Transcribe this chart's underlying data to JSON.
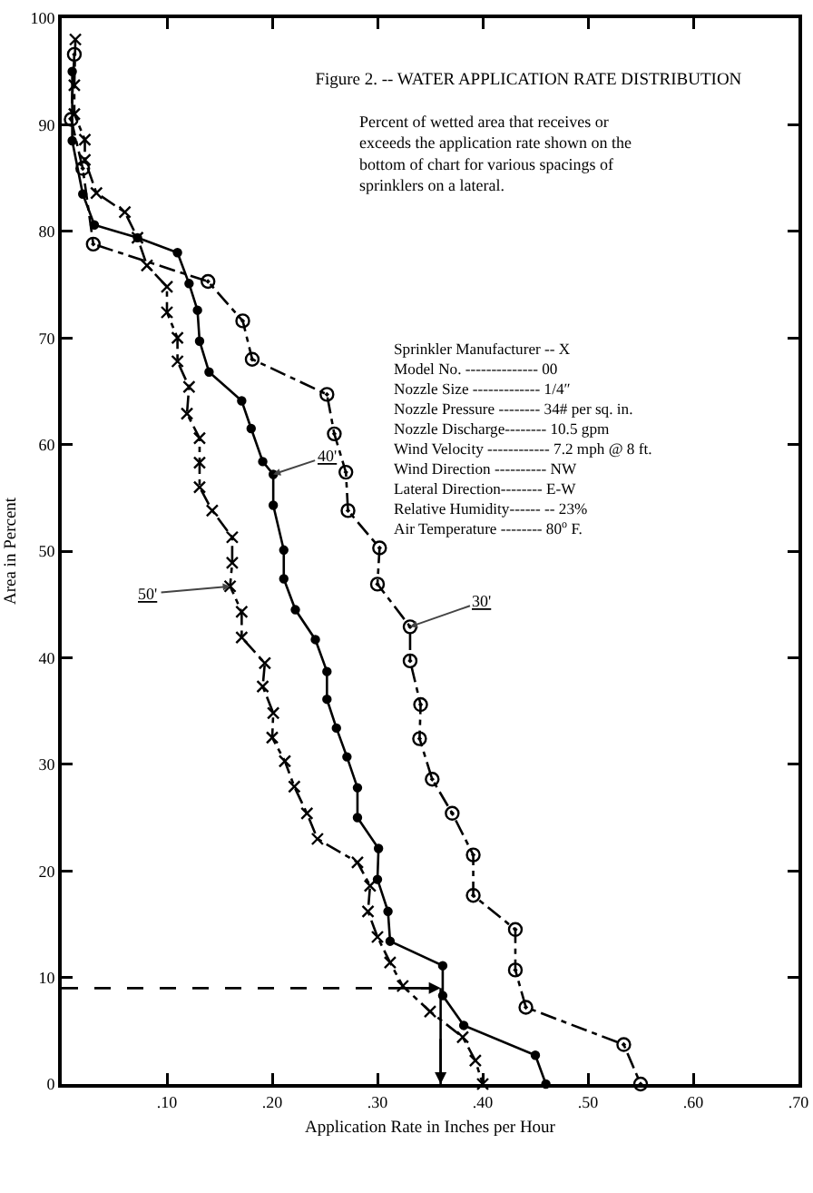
{
  "chart_data": {
    "type": "line",
    "title": "Figure 2. -- WATER APPLICATION RATE DISTRIBUTION",
    "subtitle": "Percent of wetted area that receives or exceeds the application rate shown on the bottom of chart for various spacings of sprinklers on a lateral.",
    "xlabel": "Application Rate in Inches per Hour",
    "ylabel": "Area in Percent",
    "series": [
      {
        "color": "#000000",
        "marker": "circle",
        "line_style": "dashed",
        "x": [
          0.012,
          0.009,
          0.02,
          0.03,
          0.139,
          0.172,
          0.181,
          0.252,
          0.259,
          0.27,
          0.272,
          0.302,
          0.3,
          0.331,
          0.331,
          0.341,
          0.34,
          0.352,
          0.371,
          0.391,
          0.391,
          0.431,
          0.431,
          0.441,
          0.534,
          0.55
        ],
        "values": [
          96.6,
          90.5,
          85.9,
          78.8,
          75.3,
          71.6,
          68,
          64.7,
          61,
          57.4,
          53.8,
          50.3,
          46.9,
          42.9,
          39.7,
          35.6,
          32.4,
          28.6,
          25.4,
          21.5,
          17.7,
          14.5,
          10.7,
          7.2,
          3.7,
          0
        ]
      },
      {
        "color": "#000000",
        "marker": "circle",
        "line_style": "solid",
        "x": [
          0.01,
          0.01,
          0.02,
          0.031,
          0.072,
          0.11,
          0.121,
          0.129,
          0.131,
          0.14,
          0.171,
          0.18,
          0.191,
          0.201,
          0.201,
          0.211,
          0.211,
          0.222,
          0.241,
          0.252,
          0.252,
          0.261,
          0.271,
          0.281,
          0.281,
          0.301,
          0.3,
          0.31,
          0.312,
          0.362,
          0.362,
          0.382,
          0.45,
          0.46
        ],
        "values": [
          95,
          88.5,
          83.5,
          80.6,
          79.4,
          78,
          75.1,
          72.6,
          69.7,
          66.8,
          64.1,
          61.5,
          58.4,
          57.2,
          54.3,
          50.1,
          47.4,
          44.5,
          41.7,
          38.7,
          36.1,
          33.4,
          30.7,
          27.8,
          25,
          22.1,
          19.2,
          16.2,
          13.4,
          11.1,
          8.3,
          5.5,
          2.7,
          0
        ]
      },
      {
        "color": "#000000",
        "marker": "cross",
        "line_style": "dashed",
        "x": [
          0.013,
          0.012,
          0.012,
          0.022,
          0.022,
          0.033,
          0.06,
          0.072,
          0.081,
          0.1,
          0.1,
          0.11,
          0.11,
          0.121,
          0.119,
          0.131,
          0.131,
          0.131,
          0.143,
          0.162,
          0.162,
          0.16,
          0.171,
          0.171,
          0.193,
          0.191,
          0.201,
          0.2,
          0.212,
          0.221,
          0.233,
          0.243,
          0.281,
          0.293,
          0.291,
          0.3,
          0.312,
          0.324,
          0.35,
          0.381,
          0.393,
          0.4
        ],
        "values": [
          98,
          93.7,
          91,
          88.6,
          86.7,
          83.6,
          81.8,
          79.4,
          76.8,
          74.8,
          72.4,
          70,
          67.8,
          65.4,
          62.9,
          60.6,
          58.3,
          56,
          53.8,
          51.3,
          48.9,
          46.7,
          44.3,
          41.9,
          39.5,
          37.3,
          34.8,
          32.5,
          30.3,
          27.9,
          25.4,
          23,
          20.8,
          18.6,
          16.2,
          13.8,
          11.4,
          9.2,
          6.8,
          4.4,
          2.2,
          0
        ]
      }
    ],
    "annotations": [
      {
        "text": "30'",
        "x": 0.331,
        "y": 42.9
      },
      {
        "text": "40'",
        "x": 0.201,
        "y": 57.2
      },
      {
        "text": "50'",
        "x": 0.16,
        "y": 46.7
      },
      "Sprinkler Manufacturer -- X",
      "Model No. -------------- 00",
      "Nozzle Size ------------- 1/4″",
      "Nozzle Pressure -------- 34# per sq. in.",
      "Nozzle Discharge-------- 10.5 gpm",
      "Wind Velocity ------------ 7.2 mph @ 8 ft.",
      "Wind Direction ---------- NW",
      "Lateral Direction-------- E-W",
      "Relative Humidity------ -- 23%",
      "Air Temperature -------- 80$^{o}$ F."
    ],
    "ref_lines": [
      {
        "axis": "y",
        "value": 9,
        "line_style": "dashed"
      },
      {
        "axis": "x",
        "value": 0.36,
        "line_style": "solid"
      }
    ],
    "xlim": [
      0,
      0.7
    ],
    "ylim": [
      0,
      100
    ],
    "xticks": [
      {
        "value": 0.1,
        "label": ".10"
      },
      {
        "value": 0.2,
        "label": ".20"
      },
      {
        "value": 0.3,
        "label": ".30"
      },
      {
        "value": 0.4,
        "label": ".40"
      },
      {
        "value": 0.5,
        "label": ".50"
      },
      {
        "value": 0.6,
        "label": ".60"
      },
      {
        "value": 0.7,
        "label": ".70"
      }
    ],
    "yticks": [
      0,
      10,
      20,
      30,
      40,
      50,
      60,
      70,
      80,
      90,
      100
    ],
    "grid": false
  }
}
